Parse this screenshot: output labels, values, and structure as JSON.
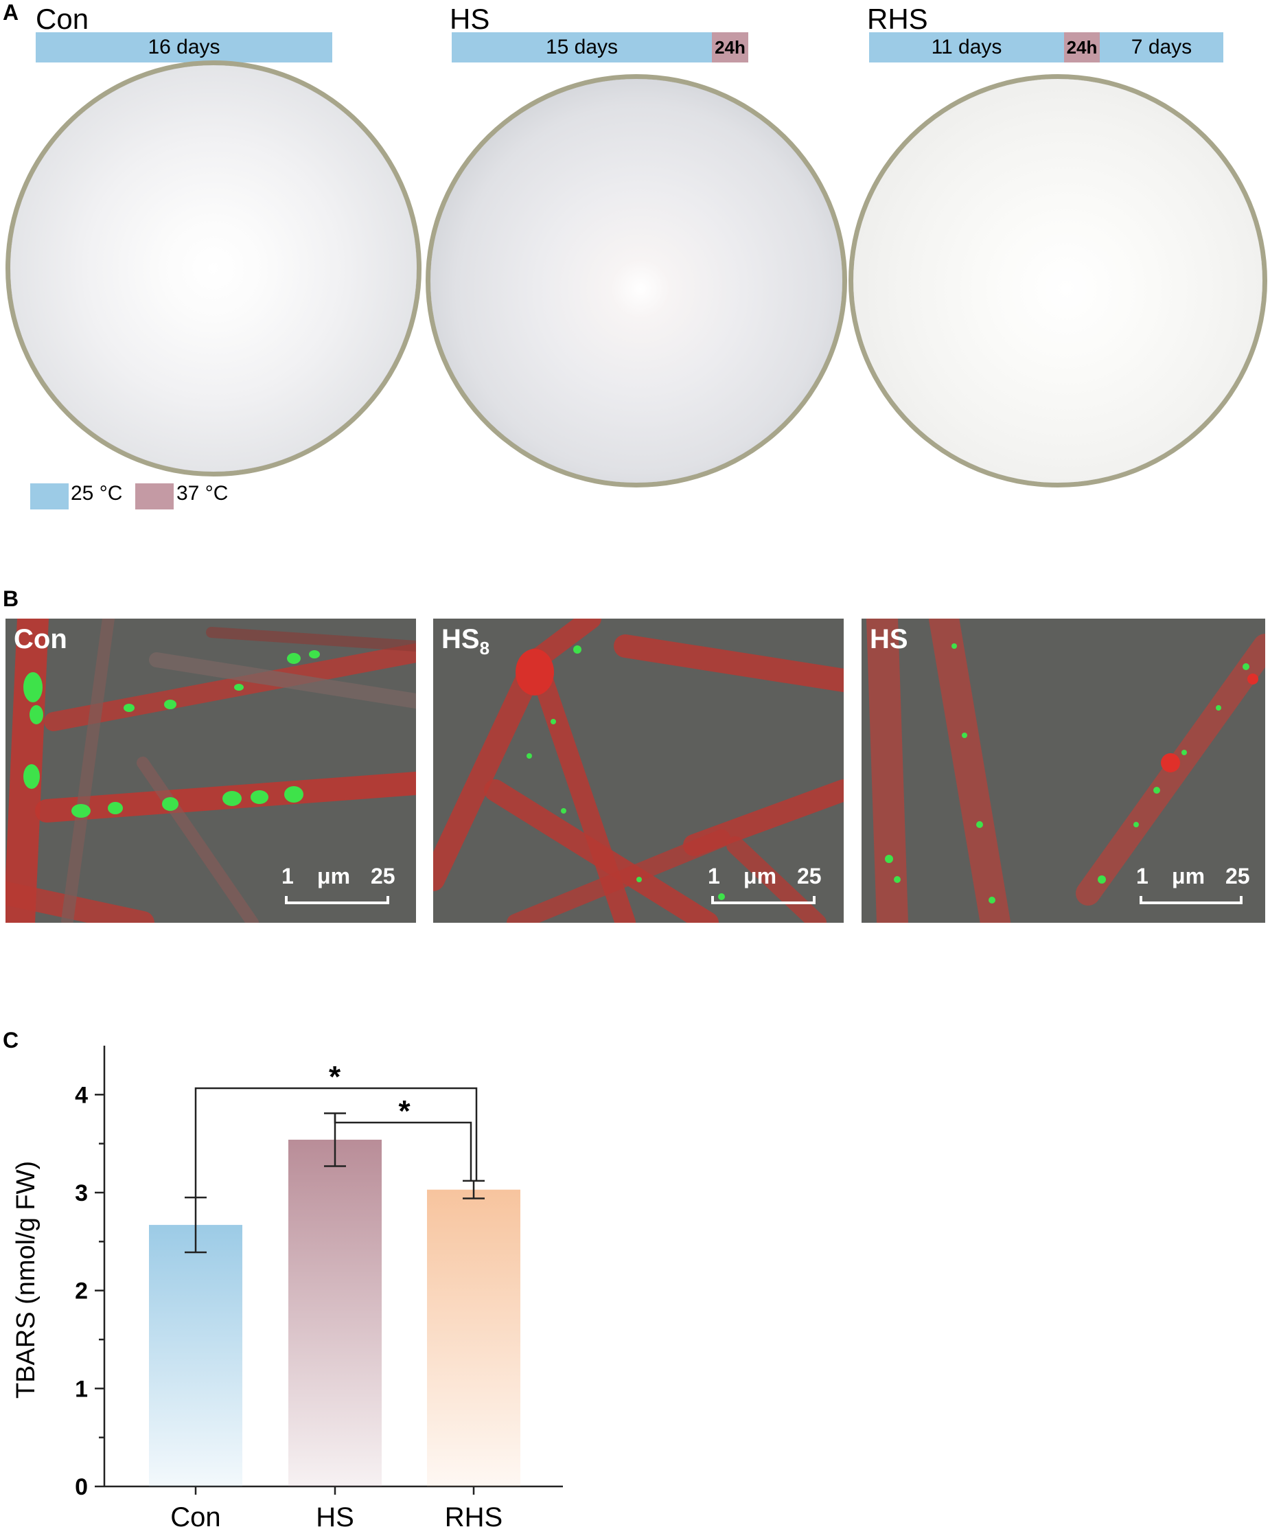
{
  "panel_a": {
    "letter": "A",
    "dishes": [
      {
        "title": "Con",
        "segments": [
          {
            "label": "16 days",
            "temp": "25"
          }
        ]
      },
      {
        "title": "HS",
        "segments": [
          {
            "label": "15 days",
            "temp": "25"
          },
          {
            "label": "24h",
            "temp": "37"
          }
        ]
      },
      {
        "title": "RHS",
        "segments": [
          {
            "label": "11 days",
            "temp": "25"
          },
          {
            "label": "24h",
            "temp": "37"
          },
          {
            "label": "7 days",
            "temp": "25"
          }
        ]
      }
    ],
    "legend": [
      {
        "label": "25 °C",
        "color": "#9ccbe6"
      },
      {
        "label": "37 °C",
        "color": "#c49aa4"
      }
    ]
  },
  "panel_b": {
    "letter": "B",
    "images": [
      {
        "label": "Con",
        "subscript": "",
        "scale_left": "1",
        "scale_unit": "μm",
        "scale_right": "25"
      },
      {
        "label": "HS",
        "subscript": "8",
        "scale_left": "1",
        "scale_unit": "μm",
        "scale_right": "25"
      },
      {
        "label": "HS",
        "subscript": "",
        "scale_left": "1",
        "scale_unit": "μm",
        "scale_right": "25"
      }
    ]
  },
  "panel_c": {
    "letter": "C"
  },
  "chart_data": {
    "type": "bar",
    "title": "",
    "xlabel": "",
    "ylabel": "TBARS (nmol/g FW)",
    "categories": [
      "Con",
      "HS",
      "RHS"
    ],
    "values": [
      2.67,
      3.54,
      3.03
    ],
    "errors": [
      0.28,
      0.27,
      0.09
    ],
    "colors": [
      "#9ccbe6",
      "#b98d98",
      "#f7c49e"
    ],
    "ylim": [
      0,
      4.5
    ],
    "yticks": [
      "0",
      "1",
      "2",
      "3",
      "4"
    ],
    "grid": false,
    "significance": [
      {
        "from": "Con",
        "to": "RHS",
        "label": "*"
      },
      {
        "from": "HS",
        "to": "RHS",
        "label": "*"
      }
    ]
  }
}
